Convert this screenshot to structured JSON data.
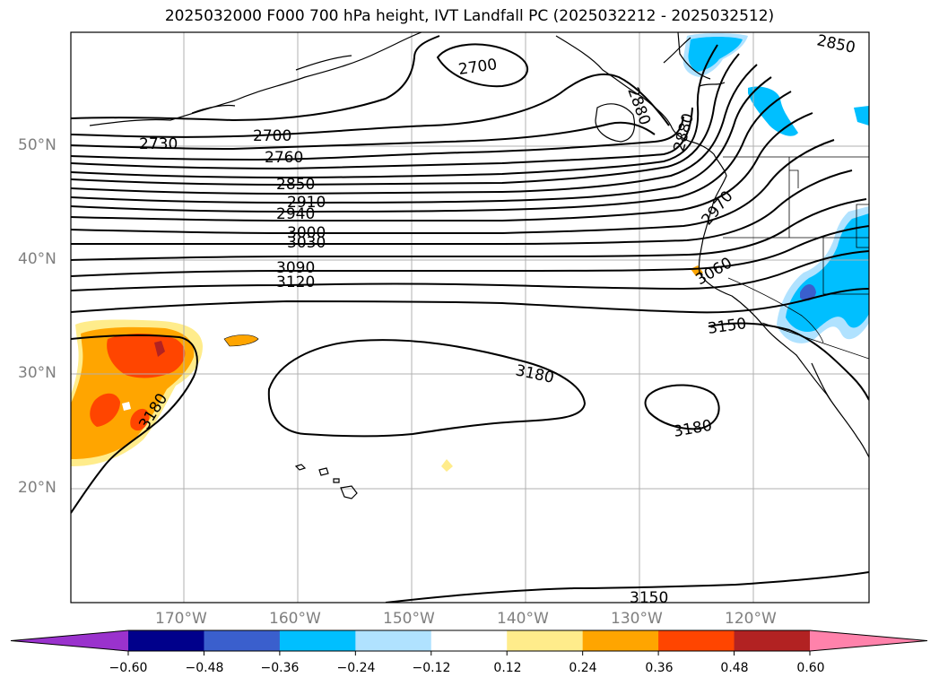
{
  "title": "2025032000 F000 700 hPa height, IVT Landfall PC (2025032212 - 2025032512)",
  "lat_ticks": [
    "50°N",
    "40°N",
    "30°N",
    "20°N"
  ],
  "lon_ticks": [
    "170°W",
    "160°W",
    "150°W",
    "140°W",
    "130°W",
    "120°W"
  ],
  "contour_labels": [
    "2700",
    "2700",
    "2730",
    "2760",
    "2850",
    "2910",
    "2940",
    "3000",
    "3030",
    "3090",
    "3120",
    "2850",
    "2880",
    "2880",
    "2970",
    "3060",
    "3150",
    "3180",
    "3180",
    "3180",
    "3150"
  ],
  "colorbar": {
    "colors": [
      "#9a32cd",
      "#00008b",
      "#3a5fcd",
      "#00bfff",
      "#b0e2ff",
      "#ffffff",
      "#ffec8b",
      "#ffa500",
      "#ff4500",
      "#b22222",
      "#ff82ab"
    ],
    "tick_labels": [
      "−0.60",
      "−0.48",
      "−0.36",
      "−0.24",
      "−0.12",
      "0.12",
      "0.24",
      "0.36",
      "0.48",
      "0.60"
    ]
  }
}
